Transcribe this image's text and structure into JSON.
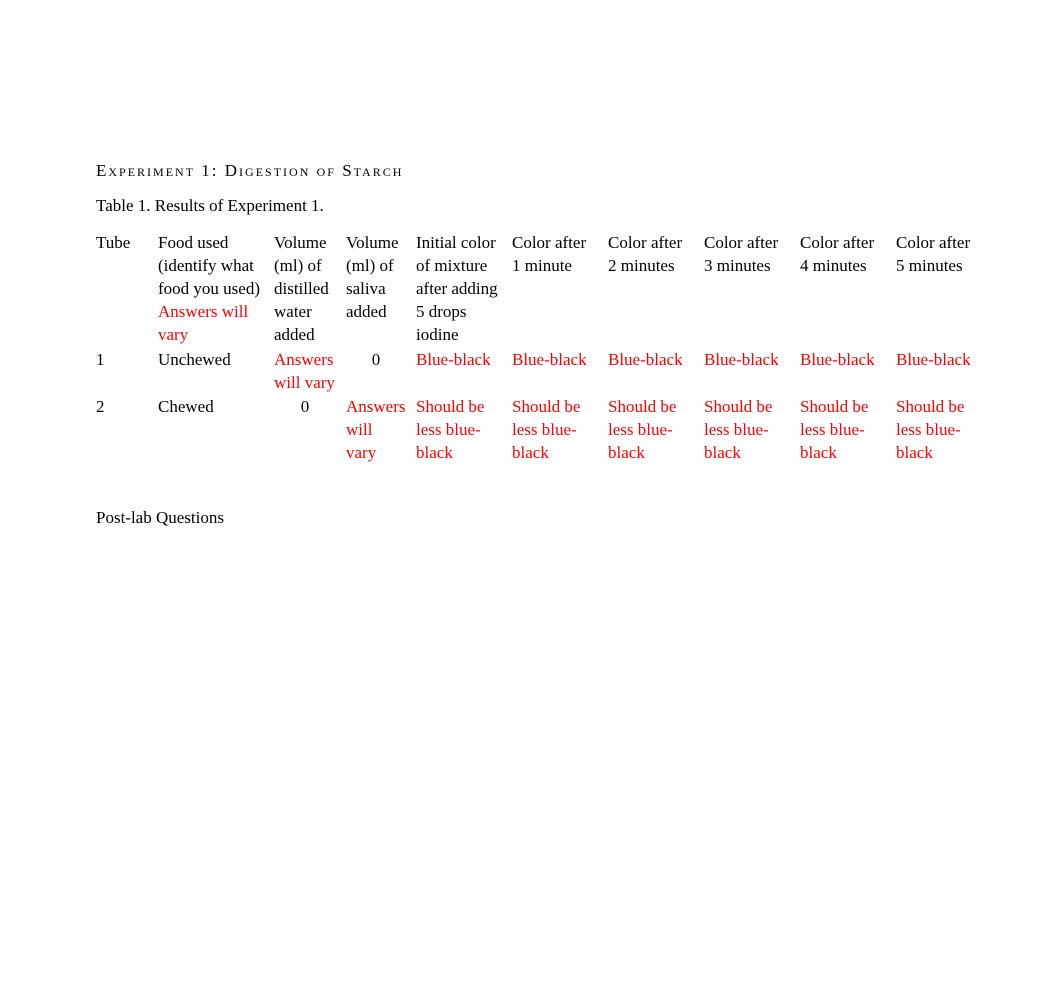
{
  "heading": "Experiment  1: Digestion  of Starch",
  "caption": "Table 1. Results of Experiment 1.",
  "colors": {
    "text": "#000000",
    "answer": "#ff0000",
    "background": "#ffffff"
  },
  "headers": {
    "tube": "Tube",
    "food_prefix": "Food used (identify what food you used)  ",
    "food_answer": "Answers will vary",
    "vol_water": "Volume (ml) of distilled water added",
    "vol_saliva": "Volume (ml) of saliva added",
    "initial": "Initial color of mixture after adding 5 drops iodine",
    "t1": "Color after 1 minute",
    "t2": "Color after 2 minutes",
    "t3": "Color after 3 minutes",
    "t4": "Color after 4 minutes",
    "t5": "Color after 5 minutes"
  },
  "rows": [
    {
      "tube": "1",
      "food": "Unchewed",
      "vol_water": "Answers will vary",
      "vol_water_red": true,
      "vol_saliva": "0",
      "vol_saliva_red": false,
      "initial": "Blue-black",
      "t1": "Blue-black",
      "t2": "Blue-black",
      "t3": "Blue-black",
      "t4": "Blue-black",
      "t5": "Blue-black"
    },
    {
      "tube": "2",
      "food": "Chewed",
      "vol_water": "0",
      "vol_water_red": false,
      "vol_saliva": "Answers will vary",
      "vol_saliva_red": true,
      "initial": "Should be less blue-black",
      "t1": "Should be less blue-black",
      "t2": "Should be less blue-black",
      "t3": "Should be less blue-black",
      "t4": "Should be less blue-black",
      "t5": "Should be less blue-black"
    }
  ],
  "postlab": "Post-lab Questions"
}
